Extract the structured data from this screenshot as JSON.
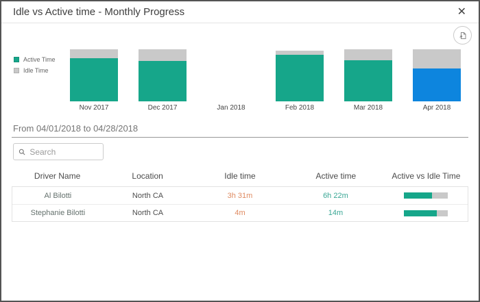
{
  "modal": {
    "title": "Idle vs Active time - Monthly Progress",
    "close_glyph": "✕"
  },
  "colors": {
    "active_teal": "#16a68a",
    "idle_gray": "#c9c9c9",
    "selected_blue": "#0d85de",
    "idle_text_orange": "#df8a60",
    "active_text_teal": "#3aa795"
  },
  "chart": {
    "legend": [
      {
        "label": "Active Time",
        "color": "#16a68a"
      },
      {
        "label": "Idle Time",
        "color": "#c9c9c9"
      }
    ],
    "months": [
      {
        "label": "Nov 2017",
        "total": 100,
        "active_pct": 83,
        "selected": false
      },
      {
        "label": "Dec 2017",
        "total": 100,
        "active_pct": 77,
        "selected": false
      },
      {
        "label": "Jan 2018",
        "total": 0,
        "active_pct": 0,
        "selected": false
      },
      {
        "label": "Feb 2018",
        "total": 97,
        "active_pct": 92,
        "selected": false
      },
      {
        "label": "Mar 2018",
        "total": 100,
        "active_pct": 79,
        "selected": false
      },
      {
        "label": "Apr 2018",
        "total": 100,
        "active_pct": 63,
        "selected": true
      }
    ]
  },
  "chart_data": {
    "type": "bar",
    "stacked": true,
    "title": "Idle vs Active time - Monthly Progress",
    "categories": [
      "Nov 2017",
      "Dec 2017",
      "Jan 2018",
      "Feb 2018",
      "Mar 2018",
      "Apr 2018"
    ],
    "series": [
      {
        "name": "Active Time",
        "values": [
          83,
          77,
          0,
          89,
          79,
          63
        ],
        "color": "#16a68a"
      },
      {
        "name": "Idle Time",
        "values": [
          17,
          23,
          0,
          8,
          21,
          37
        ],
        "color": "#c9c9c9"
      }
    ],
    "note": "values estimated from pixel heights as percent of full bar; Apr 2018 active segment highlighted blue (selected month)",
    "legend_position": "left",
    "grid": false,
    "ylim": [
      0,
      100
    ]
  },
  "period": {
    "text": "From 04/01/2018 to 04/28/2018"
  },
  "search": {
    "placeholder": "Search"
  },
  "table": {
    "columns": [
      "Driver Name",
      "Location",
      "Idle time",
      "Active time",
      "Active vs Idle Time"
    ],
    "rows": [
      {
        "driver": "Al Bilotti",
        "location": "North CA",
        "idle": "3h 31m",
        "active": "6h 22m",
        "active_pct": 64
      },
      {
        "driver": "Stephanie Bilotti",
        "location": "North CA",
        "idle": "4m",
        "active": "14m",
        "active_pct": 75
      }
    ]
  }
}
